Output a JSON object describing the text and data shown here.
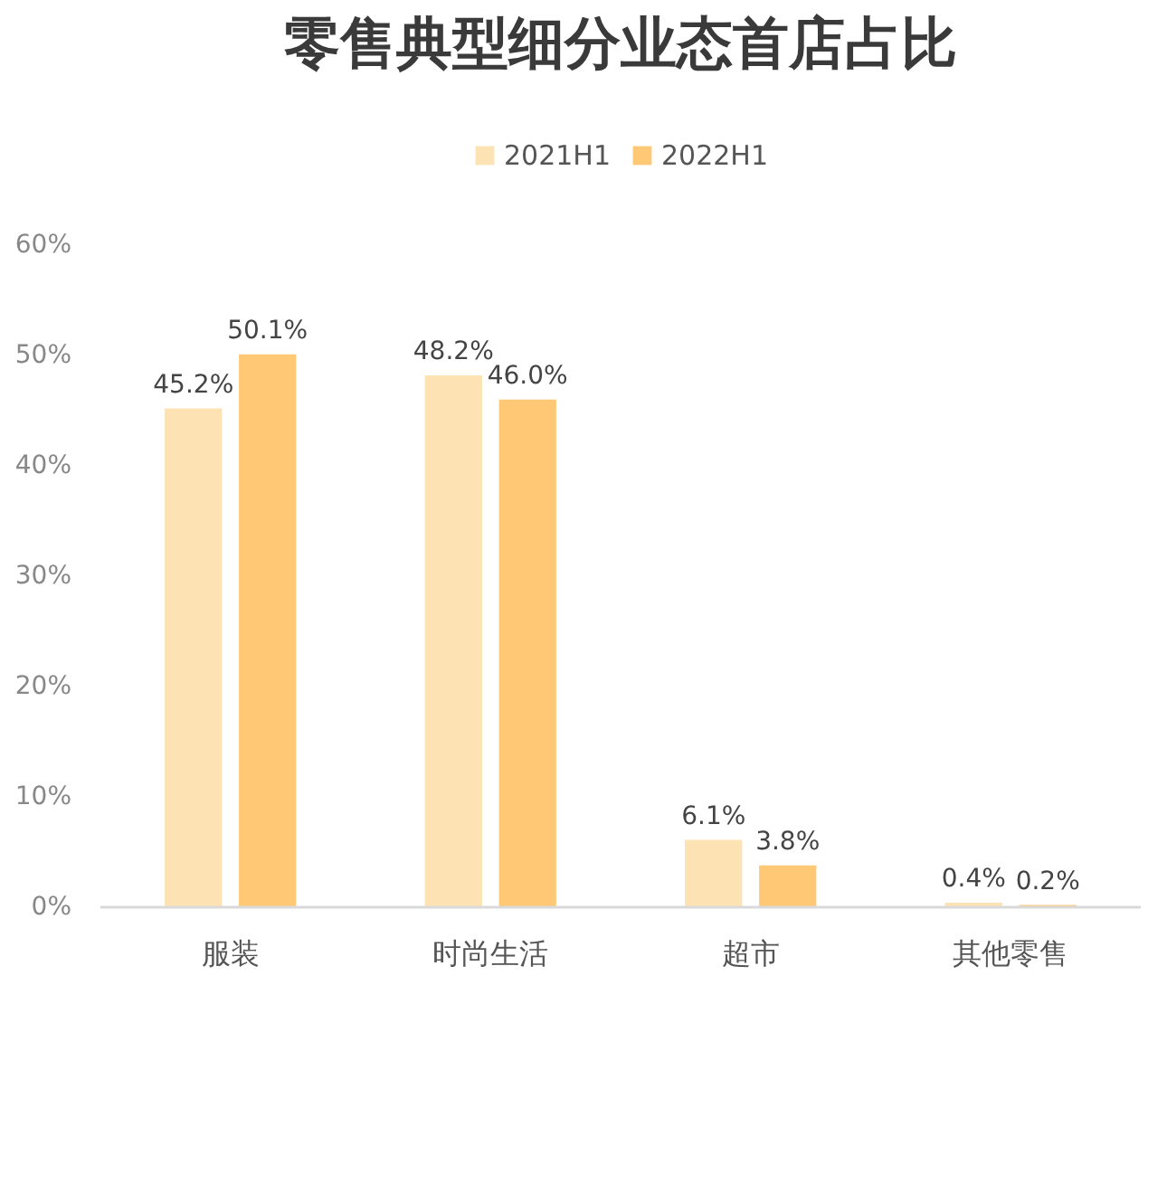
{
  "chart_data": {
    "type": "bar",
    "title": "零售典型细分业态首店占比",
    "categories": [
      "服装",
      "时尚生活",
      "超市",
      "其他零售"
    ],
    "series": [
      {
        "name": "2021H1",
        "color": "#fde2b3",
        "values": [
          45.2,
          48.2,
          6.1,
          0.4
        ],
        "value_labels": [
          "45.2%",
          "48.2%",
          "6.1%",
          "0.4%"
        ]
      },
      {
        "name": "2022H1",
        "color": "#fec874",
        "values": [
          50.1,
          46.0,
          3.8,
          0.2
        ],
        "value_labels": [
          "50.1%",
          "46.0%",
          "3.8%",
          "0.2%"
        ]
      }
    ],
    "ylim": [
      0,
      60
    ],
    "yticks": [
      {
        "value": 0,
        "label": "0%"
      },
      {
        "value": 10,
        "label": "10%"
      },
      {
        "value": 20,
        "label": "20%"
      },
      {
        "value": 30,
        "label": "30%"
      },
      {
        "value": 40,
        "label": "40%"
      },
      {
        "value": 50,
        "label": "50%"
      },
      {
        "value": 60,
        "label": "60%"
      }
    ],
    "grid": false,
    "legend": "top"
  }
}
